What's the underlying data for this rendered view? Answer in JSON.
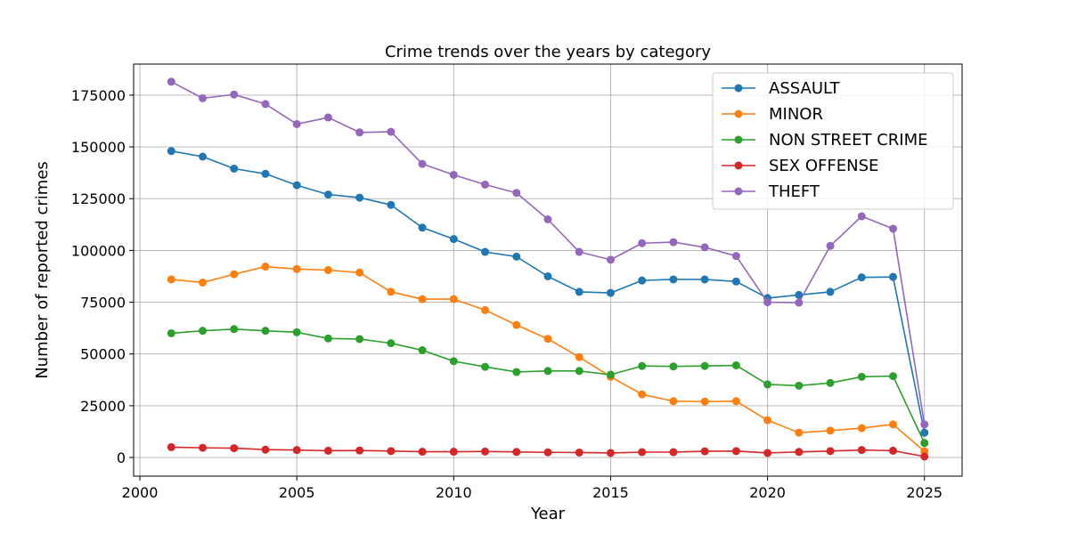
{
  "chart_data": {
    "type": "line",
    "title": "Crime trends over the years by category",
    "xlabel": "Year",
    "ylabel": "Number of reported crimes",
    "xlim": [
      1999.8,
      2026.2
    ],
    "ylim": [
      -9000,
      190000
    ],
    "xticks": [
      2000,
      2005,
      2010,
      2015,
      2020,
      2025
    ],
    "yticks": [
      0,
      25000,
      50000,
      75000,
      100000,
      125000,
      150000,
      175000
    ],
    "grid": true,
    "legend_position": "top-right",
    "x": [
      2001,
      2002,
      2003,
      2004,
      2005,
      2006,
      2007,
      2008,
      2009,
      2010,
      2011,
      2012,
      2013,
      2014,
      2015,
      2016,
      2017,
      2018,
      2019,
      2020,
      2021,
      2022,
      2023,
      2024,
      2025
    ],
    "series": [
      {
        "name": "ASSAULT",
        "color": "#1f77b4",
        "values": [
          148000,
          145300,
          139500,
          137000,
          131500,
          127000,
          125500,
          122000,
          111000,
          105500,
          99300,
          97000,
          87500,
          80000,
          79500,
          85500,
          86000,
          86000,
          85000,
          77000,
          78500,
          80000,
          87000,
          87200,
          12000
        ]
      },
      {
        "name": "MINOR",
        "color": "#ff7f0e",
        "values": [
          86000,
          84500,
          88500,
          92200,
          91000,
          90500,
          89300,
          80000,
          76500,
          76500,
          71200,
          64000,
          57300,
          48500,
          39000,
          30500,
          27200,
          27000,
          27200,
          18000,
          12000,
          13000,
          14200,
          16000,
          3000
        ]
      },
      {
        "name": "NON STREET CRIME",
        "color": "#2ca02c",
        "values": [
          60000,
          61200,
          62000,
          61200,
          60500,
          57500,
          57200,
          55200,
          51800,
          46500,
          43800,
          41300,
          41800,
          41800,
          40000,
          44200,
          44000,
          44200,
          44500,
          35300,
          34700,
          36000,
          39000,
          39300,
          7000
        ]
      },
      {
        "name": "SEX OFFENSE",
        "color": "#d62728",
        "values": [
          5000,
          4700,
          4500,
          3800,
          3600,
          3300,
          3400,
          3100,
          2800,
          2800,
          2900,
          2700,
          2500,
          2400,
          2200,
          2600,
          2600,
          3000,
          3100,
          2200,
          2700,
          3100,
          3600,
          3300,
          500
        ]
      },
      {
        "name": "THEFT",
        "color": "#9467bd",
        "values": [
          181500,
          173500,
          175300,
          170700,
          161000,
          164200,
          157000,
          157300,
          141800,
          136500,
          131800,
          127800,
          115000,
          99300,
          95500,
          103500,
          104000,
          101500,
          97300,
          75000,
          74800,
          102200,
          116500,
          110500,
          16000
        ]
      }
    ]
  }
}
